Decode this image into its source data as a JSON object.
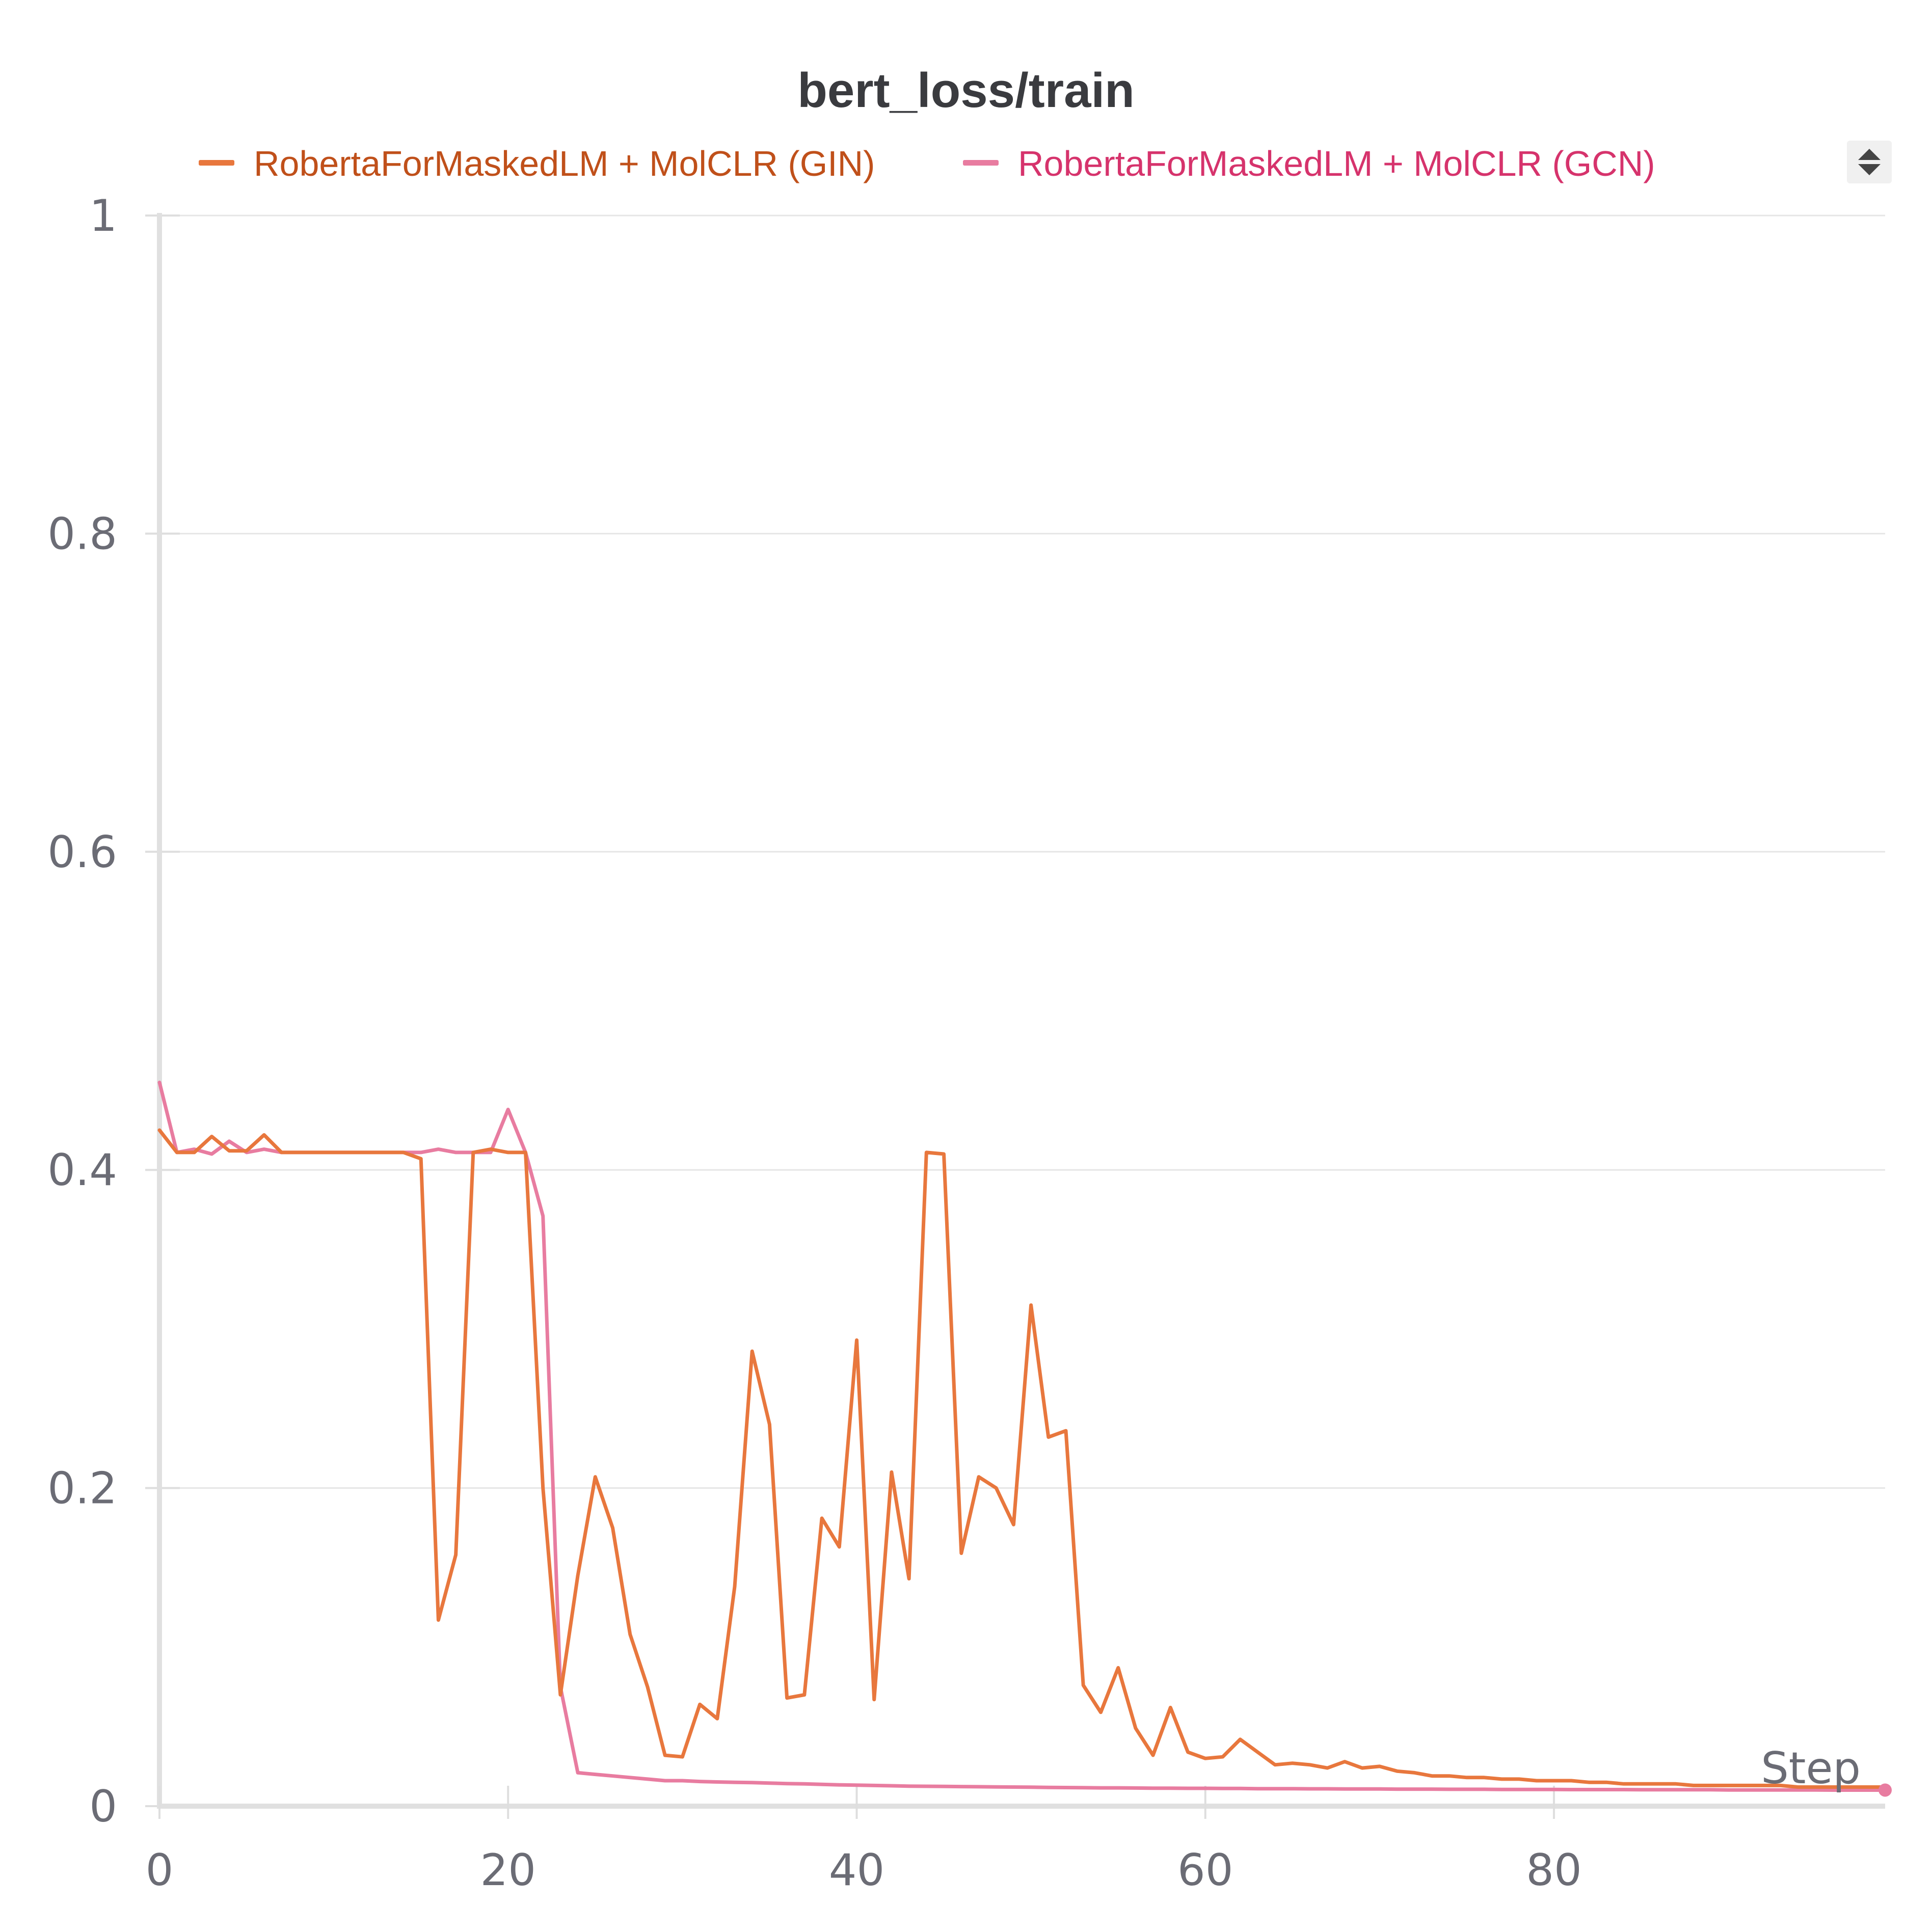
{
  "chart_data": {
    "type": "line",
    "title": "bert_loss/train",
    "xlabel": "Step",
    "ylabel": "",
    "xlim": [
      0,
      99
    ],
    "ylim": [
      0,
      1
    ],
    "x_ticks": [
      0,
      20,
      40,
      60,
      80
    ],
    "y_ticks": [
      0,
      0.2,
      0.4,
      0.6,
      0.8,
      1
    ],
    "y_tick_labels": [
      "0",
      "0.2",
      "0.4",
      "0.6",
      "0.8",
      "1"
    ],
    "x_tick_labels": [
      "0",
      "20",
      "40",
      "60",
      "80"
    ],
    "grid": true,
    "legend_position": "top",
    "series": [
      {
        "name": "RobertaForMaskedLM + MolCLR (GIN)",
        "color": "#e8773d",
        "label_color": "#c0501a",
        "x": [
          0,
          1,
          2,
          3,
          4,
          5,
          6,
          7,
          8,
          9,
          10,
          11,
          12,
          13,
          14,
          15,
          16,
          17,
          18,
          19,
          20,
          21,
          22,
          23,
          24,
          25,
          26,
          27,
          28,
          29,
          30,
          31,
          32,
          33,
          34,
          35,
          36,
          37,
          38,
          39,
          40,
          41,
          42,
          43,
          44,
          45,
          46,
          47,
          48,
          49,
          50,
          51,
          52,
          53,
          54,
          55,
          56,
          57,
          58,
          59,
          60,
          61,
          62,
          63,
          64,
          65,
          66,
          67,
          68,
          69,
          70,
          71,
          72,
          73,
          74,
          75,
          76,
          77,
          78,
          79,
          80,
          81,
          82,
          83,
          84,
          85,
          86,
          87,
          88,
          89,
          90,
          91,
          92,
          93,
          94,
          95,
          96,
          97,
          98,
          99
        ],
        "y": [
          0.425,
          0.411,
          0.411,
          0.421,
          0.412,
          0.412,
          0.422,
          0.411,
          0.411,
          0.411,
          0.411,
          0.411,
          0.411,
          0.411,
          0.411,
          0.407,
          0.117,
          0.158,
          0.411,
          0.413,
          0.411,
          0.411,
          0.2,
          0.07,
          0.145,
          0.207,
          0.175,
          0.108,
          0.075,
          0.032,
          0.031,
          0.064,
          0.055,
          0.138,
          0.286,
          0.24,
          0.068,
          0.07,
          0.181,
          0.163,
          0.293,
          0.067,
          0.21,
          0.143,
          0.411,
          0.41,
          0.159,
          0.207,
          0.2,
          0.177,
          0.315,
          0.232,
          0.236,
          0.076,
          0.059,
          0.087,
          0.049,
          0.032,
          0.062,
          0.034,
          0.03,
          0.031,
          0.042,
          0.034,
          0.026,
          0.027,
          0.026,
          0.024,
          0.028,
          0.024,
          0.025,
          0.022,
          0.021,
          0.019,
          0.019,
          0.018,
          0.018,
          0.017,
          0.017,
          0.016,
          0.016,
          0.016,
          0.015,
          0.015,
          0.014,
          0.014,
          0.014,
          0.014,
          0.013,
          0.013,
          0.013,
          0.013,
          0.013,
          0.013,
          0.012,
          0.012,
          0.012,
          0.012,
          0.012,
          0.012
        ]
      },
      {
        "name": "RobertaForMaskedLM + MolCLR (GCN)",
        "color": "#e87ca0",
        "label_color": "#d6336c",
        "x": [
          0,
          1,
          2,
          3,
          4,
          5,
          6,
          7,
          8,
          9,
          10,
          11,
          12,
          13,
          14,
          15,
          16,
          17,
          18,
          19,
          20,
          21,
          22,
          23,
          24,
          25,
          26,
          27,
          28,
          29,
          30,
          31,
          32,
          33,
          34,
          35,
          36,
          37,
          38,
          39,
          40,
          41,
          42,
          43,
          44,
          45,
          46,
          47,
          48,
          49,
          50,
          51,
          52,
          53,
          54,
          55,
          56,
          57,
          58,
          59,
          60,
          61,
          62,
          63,
          64,
          65,
          66,
          67,
          68,
          69,
          70,
          71,
          72,
          73,
          74,
          75,
          76,
          77,
          78,
          79,
          80,
          81,
          82,
          83,
          84,
          85,
          86,
          87,
          88,
          89,
          90,
          91,
          92,
          93,
          94,
          95,
          96,
          97,
          98,
          99
        ],
        "y": [
          0.455,
          0.411,
          0.413,
          0.41,
          0.418,
          0.411,
          0.413,
          0.411,
          0.411,
          0.411,
          0.411,
          0.411,
          0.411,
          0.411,
          0.411,
          0.411,
          0.413,
          0.411,
          0.411,
          0.411,
          0.438,
          0.411,
          0.371,
          0.075,
          0.021,
          0.02,
          0.019,
          0.018,
          0.017,
          0.016,
          0.016,
          0.0155,
          0.0152,
          0.015,
          0.0148,
          0.0145,
          0.0142,
          0.014,
          0.0137,
          0.0134,
          0.0132,
          0.013,
          0.0128,
          0.0126,
          0.0125,
          0.0124,
          0.0123,
          0.0122,
          0.0121,
          0.012,
          0.0119,
          0.0118,
          0.0117,
          0.0116,
          0.0115,
          0.0115,
          0.0114,
          0.0113,
          0.0113,
          0.0112,
          0.0112,
          0.0111,
          0.0111,
          0.011,
          0.011,
          0.011,
          0.0109,
          0.0109,
          0.0108,
          0.0108,
          0.0108,
          0.0107,
          0.0107,
          0.0107,
          0.0106,
          0.0106,
          0.0106,
          0.0105,
          0.0105,
          0.0105,
          0.0105,
          0.0104,
          0.0104,
          0.0104,
          0.0104,
          0.0103,
          0.0103,
          0.0103,
          0.0103,
          0.0103,
          0.0102,
          0.0102,
          0.0102,
          0.0102,
          0.0102,
          0.0102,
          0.0101,
          0.0101,
          0.0101,
          0.0101
        ]
      }
    ]
  }
}
